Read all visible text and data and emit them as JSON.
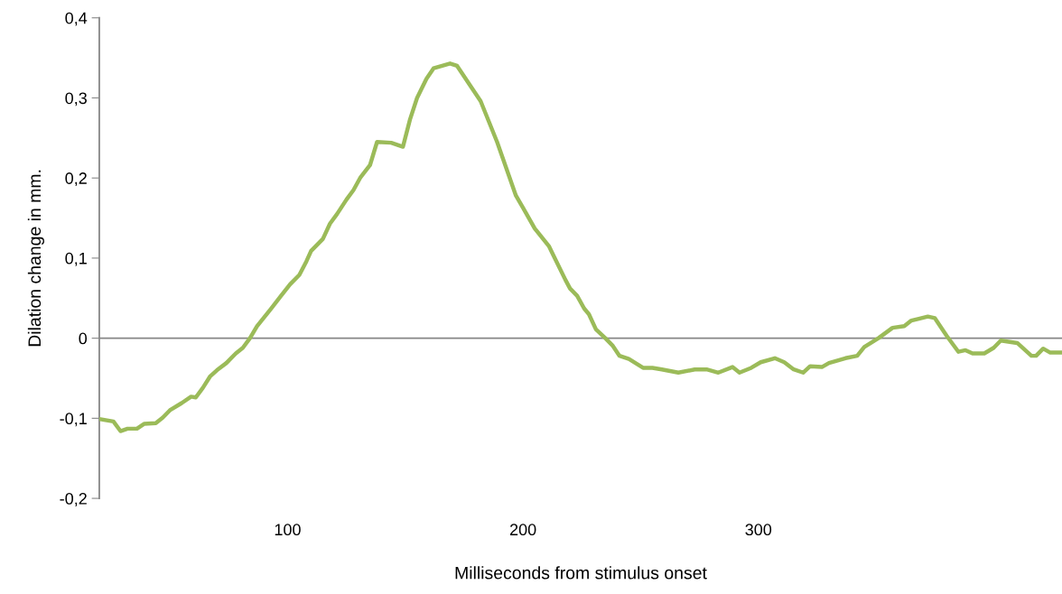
{
  "chart_data": {
    "type": "line",
    "xlabel": "Milliseconds from stimulus onset",
    "ylabel": "Dilation change in mm.",
    "xlim": [
      20,
      429
    ],
    "xticks": [
      100,
      200,
      300
    ],
    "ylim": [
      -0.2,
      0.4
    ],
    "yticks": [
      {
        "value": -0.2,
        "label": "-0,2"
      },
      {
        "value": -0.1,
        "label": "-0,1"
      },
      {
        "value": 0,
        "label": "0"
      },
      {
        "value": 0.1,
        "label": "0,1"
      },
      {
        "value": 0.2,
        "label": "0,2"
      },
      {
        "value": 0.3,
        "label": "0,3"
      },
      {
        "value": 0.4,
        "label": "0,4"
      }
    ],
    "grid": false,
    "legend": false,
    "marker": "none",
    "line_style": "solid",
    "ref_lines": [
      {
        "axis": "y",
        "value": 0,
        "color": "#868686"
      }
    ],
    "series": [
      {
        "color": "#9bbb59",
        "x": [
          20,
          26,
          29,
          32,
          36,
          39,
          44,
          47,
          50,
          55,
          59,
          61,
          64,
          67,
          70,
          74,
          78,
          81,
          84,
          87,
          93,
          97,
          101,
          105,
          108,
          110,
          115,
          118,
          121,
          125,
          128,
          131,
          135,
          138,
          144,
          149,
          152,
          155,
          159,
          162,
          169,
          172,
          177,
          182,
          189,
          197,
          200,
          205,
          211,
          213,
          218,
          220,
          223,
          226,
          228,
          231,
          235,
          238,
          241,
          245,
          251,
          255,
          259,
          266,
          273,
          278,
          283,
          289,
          292,
          297,
          301,
          307,
          311,
          315,
          319,
          322,
          327,
          330,
          337,
          342,
          345,
          351,
          357,
          362,
          365,
          372,
          375,
          380,
          385,
          388,
          391,
          396,
          400,
          403,
          410,
          416,
          418,
          421,
          424,
          429
        ],
        "values": [
          -0.101,
          -0.104,
          -0.116,
          -0.113,
          -0.113,
          -0.107,
          -0.106,
          -0.099,
          -0.09,
          -0.081,
          -0.073,
          -0.074,
          -0.062,
          -0.048,
          -0.04,
          -0.031,
          -0.019,
          -0.012,
          0,
          0.015,
          0.037,
          0.052,
          0.067,
          0.079,
          0.096,
          0.109,
          0.124,
          0.143,
          0.155,
          0.173,
          0.185,
          0.201,
          0.216,
          0.245,
          0.244,
          0.239,
          0.273,
          0.3,
          0.324,
          0.337,
          0.343,
          0.34,
          0.318,
          0.296,
          0.245,
          0.178,
          0.163,
          0.137,
          0.115,
          0.103,
          0.073,
          0.062,
          0.053,
          0.037,
          0.03,
          0.011,
          0,
          -0.009,
          -0.022,
          -0.026,
          -0.037,
          -0.037,
          -0.039,
          -0.043,
          -0.039,
          -0.039,
          -0.043,
          -0.036,
          -0.043,
          -0.037,
          -0.03,
          -0.025,
          -0.03,
          -0.039,
          -0.043,
          -0.035,
          -0.036,
          -0.031,
          -0.025,
          -0.022,
          -0.011,
          0,
          0.013,
          0.015,
          0.022,
          0.027,
          0.025,
          0.003,
          -0.017,
          -0.015,
          -0.019,
          -0.019,
          -0.012,
          -0.003,
          -0.006,
          -0.022,
          -0.022,
          -0.013,
          -0.018,
          -0.018
        ]
      }
    ]
  }
}
